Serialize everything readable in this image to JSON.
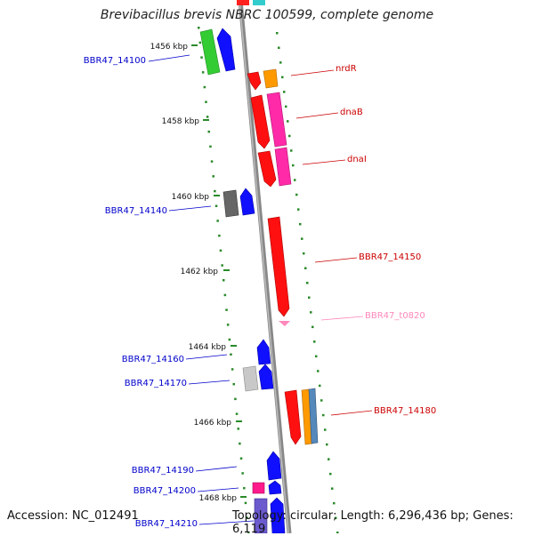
{
  "title": "Brevibacillus brevis NBRC 100599, complete genome",
  "accession_text": "Accession: NC_012491",
  "summary_text": "Topology: circular; Length: 6,296,436 bp; Genes: 6,119",
  "ticks": [
    {
      "label": "1456 kbp"
    },
    {
      "label": "1458 kbp"
    },
    {
      "label": "1460 kbp"
    },
    {
      "label": "1462 kbp"
    },
    {
      "label": "1464 kbp"
    },
    {
      "label": "1466 kbp"
    },
    {
      "label": "1468 kbp"
    }
  ],
  "genes": [
    {
      "label": "BBR47_14100",
      "color": "#0000cc"
    },
    {
      "label": "nrdR",
      "color": "#cc0000"
    },
    {
      "label": "dnaB",
      "color": "#cc0000"
    },
    {
      "label": "dnaI",
      "color": "#cc0000"
    },
    {
      "label": "BBR47_14140",
      "color": "#0000cc"
    },
    {
      "label": "BBR47_14150",
      "color": "#cc0000"
    },
    {
      "label": "BBR47_t0820",
      "color": "#ff88bb"
    },
    {
      "label": "BBR47_14160",
      "color": "#0000cc"
    },
    {
      "label": "BBR47_14170",
      "color": "#0000cc"
    },
    {
      "label": "BBR47_14180",
      "color": "#cc0000"
    },
    {
      "label": "BBR47_14190",
      "color": "#0000cc"
    },
    {
      "label": "BBR47_14200",
      "color": "#0000cc"
    },
    {
      "label": "BBR47_14210",
      "color": "#0000cc"
    }
  ]
}
